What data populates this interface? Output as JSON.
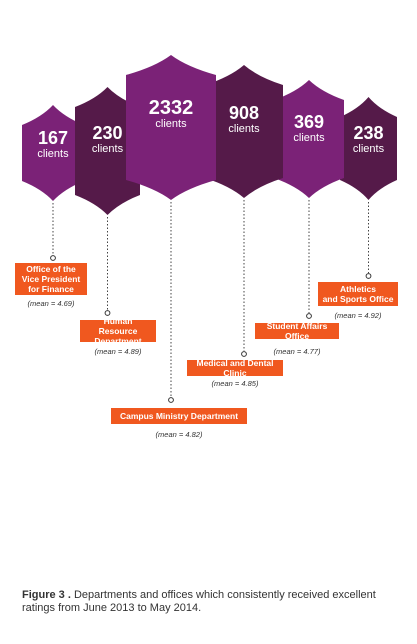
{
  "chart_data": {
    "type": "bar",
    "unit_label": "clients",
    "categories": [
      {
        "name": "Office of the Vice President for Finance",
        "lines": [
          "Office of the",
          "Vice President",
          "for Finance"
        ],
        "clients": 167,
        "mean_text": "(mean = 4.69)",
        "mean": 4.69,
        "color": "#7b2277"
      },
      {
        "name": "Human Resource Department",
        "lines": [
          "Human Resource",
          "Department"
        ],
        "clients": 230,
        "mean_text": "(mean = 4.89)",
        "mean": 4.89,
        "color": "#551a49"
      },
      {
        "name": "Campus Ministry Department",
        "lines": [
          "Campus Ministry Department"
        ],
        "clients": 2332,
        "mean_text": "(mean = 4.82)",
        "mean": 4.82,
        "color": "#7b2277"
      },
      {
        "name": "Medical and Dental Clinic",
        "lines": [
          "Medical and Dental Clinic"
        ],
        "clients": 908,
        "mean_text": "(mean = 4.85)",
        "mean": 4.85,
        "color": "#551a49"
      },
      {
        "name": "Student Affairs Office",
        "lines": [
          "Student Affairs Office"
        ],
        "clients": 369,
        "mean_text": "(mean = 4.77)",
        "mean": 4.77,
        "color": "#7b2277"
      },
      {
        "name": "Athletics and Sports Office",
        "lines": [
          "Athletics",
          "and Sports Office"
        ],
        "clients": 238,
        "mean_text": "(mean = 4.92)",
        "mean": 4.92,
        "color": "#551a49"
      }
    ],
    "colors": {
      "label_bg": "#f0581f",
      "leader": "#444444"
    }
  },
  "caption": {
    "figure_label": "Figure 3 .",
    "text": "Departments and offices which consistently received excellent ratings from June 2013 to May 2014."
  }
}
